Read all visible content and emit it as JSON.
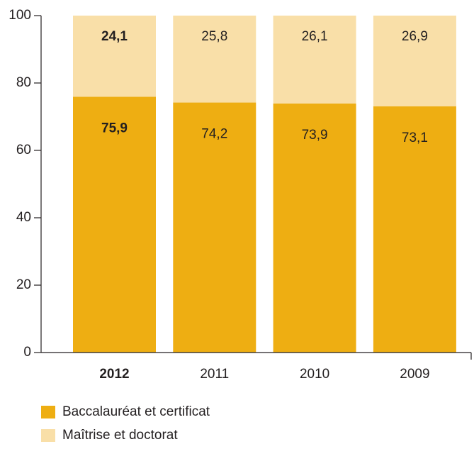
{
  "chart_data": {
    "type": "stacked_bar",
    "categories": [
      "2012",
      "2011",
      "2010",
      "2009"
    ],
    "series": [
      {
        "name": "Baccalauréat et certificat",
        "color": "#eeae12",
        "values": [
          75.9,
          74.2,
          73.9,
          73.1
        ],
        "value_labels": [
          "75,9",
          "74,2",
          "73,9",
          "73,1"
        ]
      },
      {
        "name": "Maîtrise et doctorat",
        "color": "#f9dfa8",
        "values": [
          24.1,
          25.8,
          26.1,
          26.9
        ],
        "value_labels": [
          "24,1",
          "25,8",
          "26,1",
          "26,9"
        ]
      }
    ],
    "ylim": [
      0,
      100
    ],
    "yticks": [
      0,
      20,
      40,
      60,
      80,
      100
    ],
    "grid": false,
    "legend": "bottom-left"
  }
}
